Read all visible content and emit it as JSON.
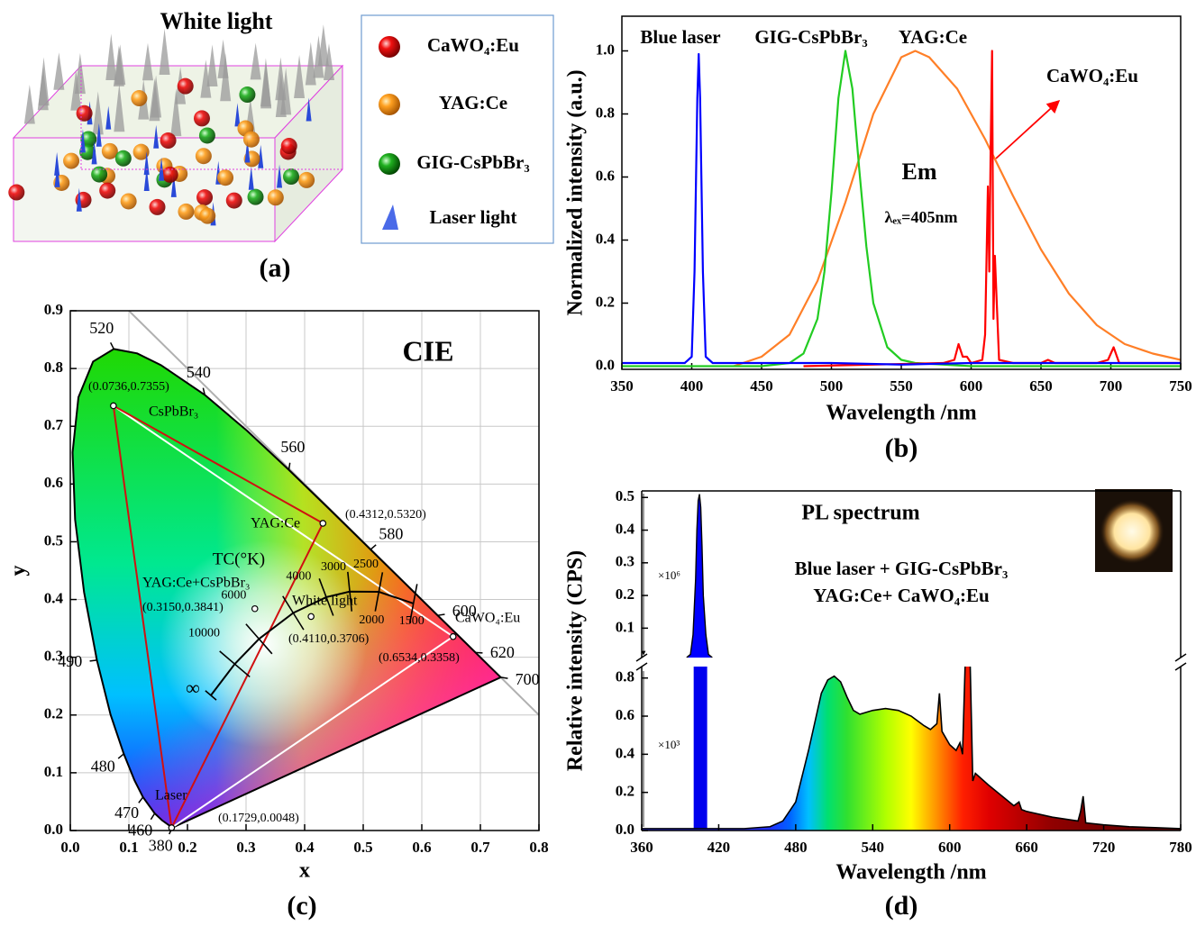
{
  "schematic": {
    "title": "White light",
    "legend": [
      "CaWO₄:Eu",
      "YAG:Ce",
      "GIG-CsPbBr₃",
      "Laser light"
    ],
    "panel_label": "(a)"
  },
  "chart_data": [
    {
      "type": "line",
      "panel_label": "(b)",
      "x_label": "Wavelength /nm",
      "y_label": "Normalized intensity (a.u.)",
      "annotations": [
        "Em",
        "λₑₓ=405nm"
      ],
      "xlim": [
        350,
        750
      ],
      "xticks": [
        350,
        400,
        450,
        500,
        550,
        600,
        650,
        700,
        750
      ],
      "ylim": [
        -0.01,
        1.11
      ],
      "yticks": [
        {
          "value": 0,
          "label": "0.0"
        },
        0.2,
        0.4,
        0.6,
        0.8,
        {
          "value": 1,
          "label": "1.0"
        }
      ],
      "series": [
        {
          "name": "Blue laser",
          "color": "#0000ff",
          "x": [
            350,
            380,
            395,
            400,
            402,
            404,
            405,
            406,
            408,
            410,
            415,
            450,
            500,
            550,
            600,
            650,
            700,
            750
          ],
          "values": [
            0.01,
            0.01,
            0.01,
            0.03,
            0.3,
            0.85,
            0.99,
            0.85,
            0.3,
            0.03,
            0.01,
            0.01,
            0.01,
            0.005,
            0.01,
            0.01,
            0.01,
            0.01
          ]
        },
        {
          "name": "GIG-CsPbBr₃",
          "color": "#22cc22",
          "x": [
            350,
            450,
            470,
            480,
            490,
            495,
            500,
            505,
            510,
            515,
            520,
            525,
            530,
            540,
            550,
            560,
            600,
            750
          ],
          "values": [
            0,
            0,
            0.01,
            0.04,
            0.15,
            0.3,
            0.55,
            0.85,
            1.0,
            0.88,
            0.62,
            0.38,
            0.2,
            0.06,
            0.02,
            0.01,
            0,
            0
          ]
        },
        {
          "name": "YAG:Ce",
          "color": "#ff7f27",
          "x": [
            430,
            450,
            470,
            490,
            510,
            530,
            550,
            560,
            570,
            590,
            610,
            630,
            650,
            670,
            690,
            710,
            730,
            750
          ],
          "values": [
            0,
            0.03,
            0.1,
            0.27,
            0.52,
            0.8,
            0.98,
            1.0,
            0.98,
            0.88,
            0.72,
            0.54,
            0.37,
            0.23,
            0.13,
            0.07,
            0.04,
            0.02
          ]
        },
        {
          "name": "CaWO₄:Eu",
          "color": "#ff0000",
          "x": [
            480,
            580,
            588,
            591,
            594,
            597,
            600,
            608,
            610,
            612,
            613,
            614,
            615,
            616,
            617,
            620,
            630,
            650,
            655,
            660,
            690,
            698,
            702,
            706,
            720,
            750
          ],
          "values": [
            0,
            0.01,
            0.02,
            0.07,
            0.03,
            0.03,
            0.01,
            0.02,
            0.1,
            0.57,
            0.3,
            0.7,
            1.0,
            0.15,
            0.35,
            0.02,
            0.01,
            0.01,
            0.02,
            0.01,
            0.01,
            0.02,
            0.06,
            0.01,
            0.01,
            0.01
          ]
        }
      ]
    },
    {
      "type": "scatter",
      "panel_label": "(c)",
      "title": "CIE",
      "x_label": "x",
      "y_label": "y",
      "xlim": [
        0,
        0.8
      ],
      "xticks": [
        {
          "value": 0,
          "label": "0.0"
        },
        0.1,
        0.2,
        0.3,
        0.4,
        0.5,
        0.6,
        0.7,
        0.8
      ],
      "ylim": [
        0,
        0.9
      ],
      "yticks": [
        {
          "value": 0,
          "label": "0.0"
        },
        0.1,
        0.2,
        0.3,
        0.4,
        0.5,
        0.6,
        0.7,
        0.8,
        0.9
      ],
      "grid": true,
      "points": [
        {
          "name": "CsPbBr₃",
          "x": 0.0736,
          "y": 0.7355,
          "value_label": "(0.0736,0.7355)",
          "color": "#000000"
        },
        {
          "name": "YAG:Ce",
          "x": 0.4312,
          "y": 0.532,
          "value_label": "(0.4312,0.5320)",
          "color": "#000000"
        },
        {
          "name": "CaWO₄:Eu",
          "x": 0.6534,
          "y": 0.3358,
          "value_label": "(0.6534,0.3358)",
          "color": "#ee0000"
        },
        {
          "name": "Laser",
          "x": 0.1729,
          "y": 0.0048,
          "value_label": "(0.1729,0.0048)",
          "color": "#40e0ff"
        },
        {
          "name": "White light",
          "x": 0.411,
          "y": 0.3706,
          "value_label": "(0.4110,0.3706)",
          "color": "#e020e0"
        },
        {
          "name": "YAG:Ce+CsPbBr₃",
          "x": 0.315,
          "y": 0.3841,
          "value_label": "(0.3150,0.3841)",
          "color": "#e020e0"
        }
      ],
      "locus": {
        "wavelengths": [
          380,
          null,
          460,
          470,
          null,
          480,
          null,
          490,
          null,
          null,
          null,
          null,
          null,
          520,
          null,
          null,
          540,
          null,
          560,
          null,
          580,
          null,
          600,
          null,
          620,
          null,
          700
        ],
        "x": [
          0.1741,
          0.1566,
          0.144,
          0.1241,
          0.1096,
          0.0913,
          0.0687,
          0.0454,
          0.0235,
          0.0082,
          0.0039,
          0.0139,
          0.0389,
          0.0743,
          0.1142,
          0.1547,
          0.2296,
          0.3016,
          0.3731,
          0.4441,
          0.5125,
          0.5752,
          0.627,
          0.6658,
          0.6915,
          0.719,
          0.7347
        ],
        "y": [
          0.005,
          0.0177,
          0.0297,
          0.0578,
          0.0868,
          0.1327,
          0.2007,
          0.295,
          0.4127,
          0.5384,
          0.6548,
          0.7502,
          0.812,
          0.8338,
          0.8262,
          0.8059,
          0.7543,
          0.6923,
          0.6245,
          0.5547,
          0.4866,
          0.4242,
          0.3725,
          0.334,
          0.3083,
          0.2809,
          0.2653
        ]
      },
      "planckian": {
        "title": "TC(°K)",
        "labels": [
          "∞",
          "10000",
          "6000",
          "4000",
          "3000",
          "2500",
          "2000",
          "1500"
        ],
        "x": [
          0.2399,
          0.2807,
          0.3221,
          0.3805,
          0.4369,
          0.477,
          0.5267,
          0.5857
        ],
        "y": [
          0.234,
          0.2883,
          0.3318,
          0.3768,
          0.4041,
          0.4137,
          0.4133,
          0.3931
        ]
      }
    },
    {
      "type": "area",
      "panel_label": "(d)",
      "title": "PL spectrum",
      "annotations": [
        "Blue laser + GIG-CsPbBr₃",
        "YAG:Ce+ CaWO₄:Eu"
      ],
      "scale_labels": [
        "×10⁶",
        "×10³"
      ],
      "x_label": "Wavelength /nm",
      "y_label": "Relative intensity (CPS)",
      "xlim": [
        360,
        780
      ],
      "xticks": [
        360,
        420,
        480,
        540,
        600,
        660,
        720,
        780
      ],
      "ylim": [
        0,
        0.86
      ],
      "yticks": [
        {
          "value": 0,
          "label": "0.0"
        },
        0.2,
        0.4,
        0.6,
        0.8
      ],
      "y2lim": [
        0.01,
        0.52
      ],
      "y2ticks": [
        0.1,
        0.2,
        0.3,
        0.4,
        0.5
      ],
      "series": [
        {
          "x": [
            360,
            400,
            440,
            460,
            470,
            480,
            490,
            500,
            505,
            510,
            515,
            520,
            525,
            530,
            540,
            550,
            560,
            570,
            580,
            585,
            590,
            592,
            594,
            600,
            605,
            608,
            610,
            612,
            614,
            616,
            618,
            620,
            630,
            650,
            654,
            656,
            660,
            680,
            700,
            702,
            704,
            706,
            720,
            740,
            760,
            780
          ],
          "values": [
            0.01,
            0.01,
            0.01,
            0.02,
            0.05,
            0.15,
            0.42,
            0.72,
            0.79,
            0.81,
            0.78,
            0.7,
            0.63,
            0.61,
            0.63,
            0.64,
            0.63,
            0.6,
            0.55,
            0.53,
            0.56,
            0.72,
            0.52,
            0.45,
            0.42,
            0.46,
            0.4,
            0.86,
            0.88,
            0.86,
            0.26,
            0.3,
            0.24,
            0.13,
            0.15,
            0.11,
            0.1,
            0.07,
            0.05,
            0.1,
            0.18,
            0.04,
            0.03,
            0.02,
            0.015,
            0.01
          ]
        },
        {
          "axis": "y2",
          "color": "#0000ff",
          "x": [
            395,
            398,
            400,
            402,
            403,
            404,
            405,
            406,
            407,
            408,
            410,
            412,
            415
          ],
          "values": [
            0.01,
            0.02,
            0.08,
            0.25,
            0.4,
            0.49,
            0.51,
            0.47,
            0.35,
            0.2,
            0.08,
            0.02,
            0.01
          ]
        }
      ]
    }
  ]
}
